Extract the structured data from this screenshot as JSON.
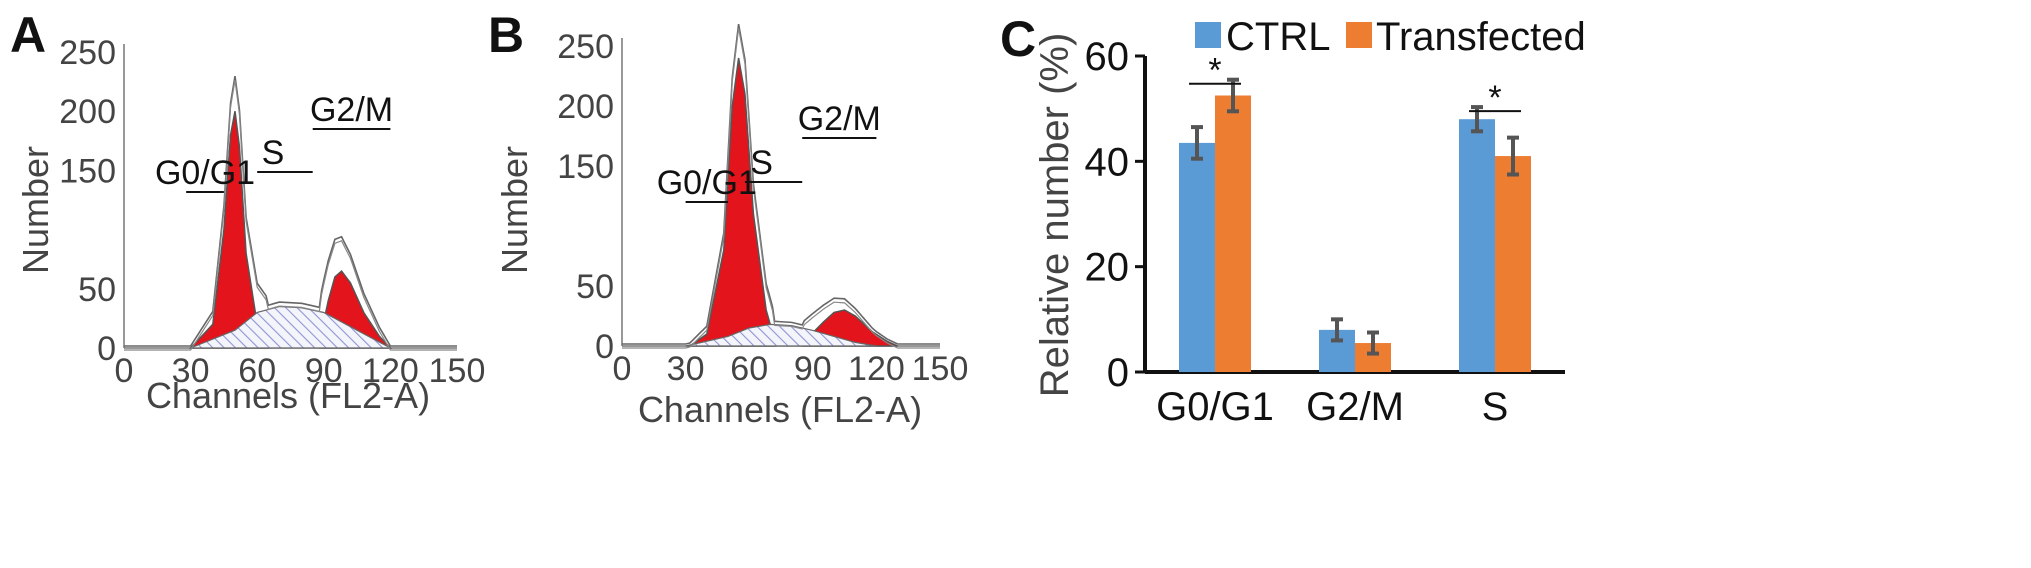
{
  "panels": {
    "A": "A",
    "B": "B",
    "C": "C"
  },
  "histA": {
    "xlabel": "Channels (FL2-A)",
    "ylabel": "Number",
    "xticks": [
      "0",
      "30",
      "60",
      "90",
      "120",
      "150"
    ],
    "yticks": [
      "0",
      "50",
      "150",
      "200",
      "250"
    ],
    "gates": {
      "g1": "G0/G1",
      "s": "S",
      "g2m": "G2/M"
    }
  },
  "histB": {
    "xlabel": "Channels (FL2-A)",
    "ylabel": "Number",
    "xticks": [
      "0",
      "30",
      "60",
      "90",
      "120",
      "150"
    ],
    "yticks": [
      "0",
      "50",
      "150",
      "200",
      "250"
    ],
    "gates": {
      "g1": "G0/G1",
      "s": "S",
      "g2m": "G2/M"
    }
  },
  "colors": {
    "ctrl": "#5b9bd5",
    "transfected": "#ed7d31",
    "fill_red": "#e3141b",
    "hatch": "#9aa0d8"
  },
  "chart_data": [
    {
      "type": "area",
      "panel": "A",
      "xlabel": "Channels (FL2-A)",
      "ylabel": "Number",
      "xlim": [
        0,
        150
      ],
      "ylim": [
        0,
        250
      ],
      "series": [
        {
          "name": "G0/G1",
          "x": [
            30,
            40,
            45,
            48,
            50,
            52,
            55,
            60,
            65
          ],
          "y": [
            0,
            20,
            100,
            180,
            200,
            170,
            80,
            20,
            5
          ]
        },
        {
          "name": "S",
          "x": [
            30,
            50,
            60,
            70,
            80,
            90,
            100,
            110,
            115,
            120
          ],
          "y": [
            0,
            15,
            30,
            35,
            34,
            30,
            20,
            10,
            5,
            0
          ]
        },
        {
          "name": "G2/M",
          "x": [
            88,
            92,
            95,
            98,
            102,
            108,
            115,
            120
          ],
          "y": [
            5,
            40,
            60,
            65,
            55,
            30,
            10,
            0
          ]
        }
      ],
      "gates": [
        {
          "label": "G0/G1",
          "x": [
            28,
            45
          ]
        },
        {
          "label": "S",
          "x": [
            60,
            85
          ]
        },
        {
          "label": "G2/M",
          "x": [
            85,
            120
          ]
        }
      ]
    },
    {
      "type": "area",
      "panel": "B",
      "xlabel": "Channels (FL2-A)",
      "ylabel": "Number",
      "xlim": [
        0,
        150
      ],
      "ylim": [
        0,
        250
      ],
      "series": [
        {
          "name": "G0/G1",
          "x": [
            32,
            40,
            48,
            52,
            55,
            58,
            62,
            68,
            72
          ],
          "y": [
            0,
            10,
            80,
            200,
            240,
            210,
            110,
            30,
            5
          ]
        },
        {
          "name": "S",
          "x": [
            30,
            50,
            60,
            70,
            80,
            90,
            100,
            110,
            120
          ],
          "y": [
            0,
            8,
            15,
            18,
            17,
            13,
            8,
            3,
            0
          ]
        },
        {
          "name": "G2/M",
          "x": [
            85,
            95,
            100,
            105,
            110,
            118,
            125,
            130
          ],
          "y": [
            2,
            20,
            28,
            30,
            25,
            12,
            4,
            0
          ]
        }
      ],
      "gates": [
        {
          "label": "G0/G1",
          "x": [
            30,
            50
          ]
        },
        {
          "label": "S",
          "x": [
            58,
            85
          ]
        },
        {
          "label": "G2/M",
          "x": [
            85,
            120
          ]
        }
      ]
    },
    {
      "type": "bar",
      "panel": "C",
      "categories": [
        "G0/G1",
        "G2/M",
        "S"
      ],
      "ylabel": "Relative number (%)",
      "ylim": [
        0,
        60
      ],
      "yticks": [
        "0",
        "20",
        "40",
        "60"
      ],
      "series": [
        {
          "name": "CTRL",
          "values": [
            43.5,
            8,
            48
          ],
          "errors": [
            3,
            2,
            2.3
          ]
        },
        {
          "name": "Transfected",
          "values": [
            52.5,
            5.5,
            41
          ],
          "errors": [
            3,
            2,
            3.5
          ]
        }
      ],
      "significance": [
        {
          "category": "G0/G1",
          "label": "*"
        },
        {
          "category": "S",
          "label": "*"
        }
      ],
      "legend": "top"
    }
  ]
}
